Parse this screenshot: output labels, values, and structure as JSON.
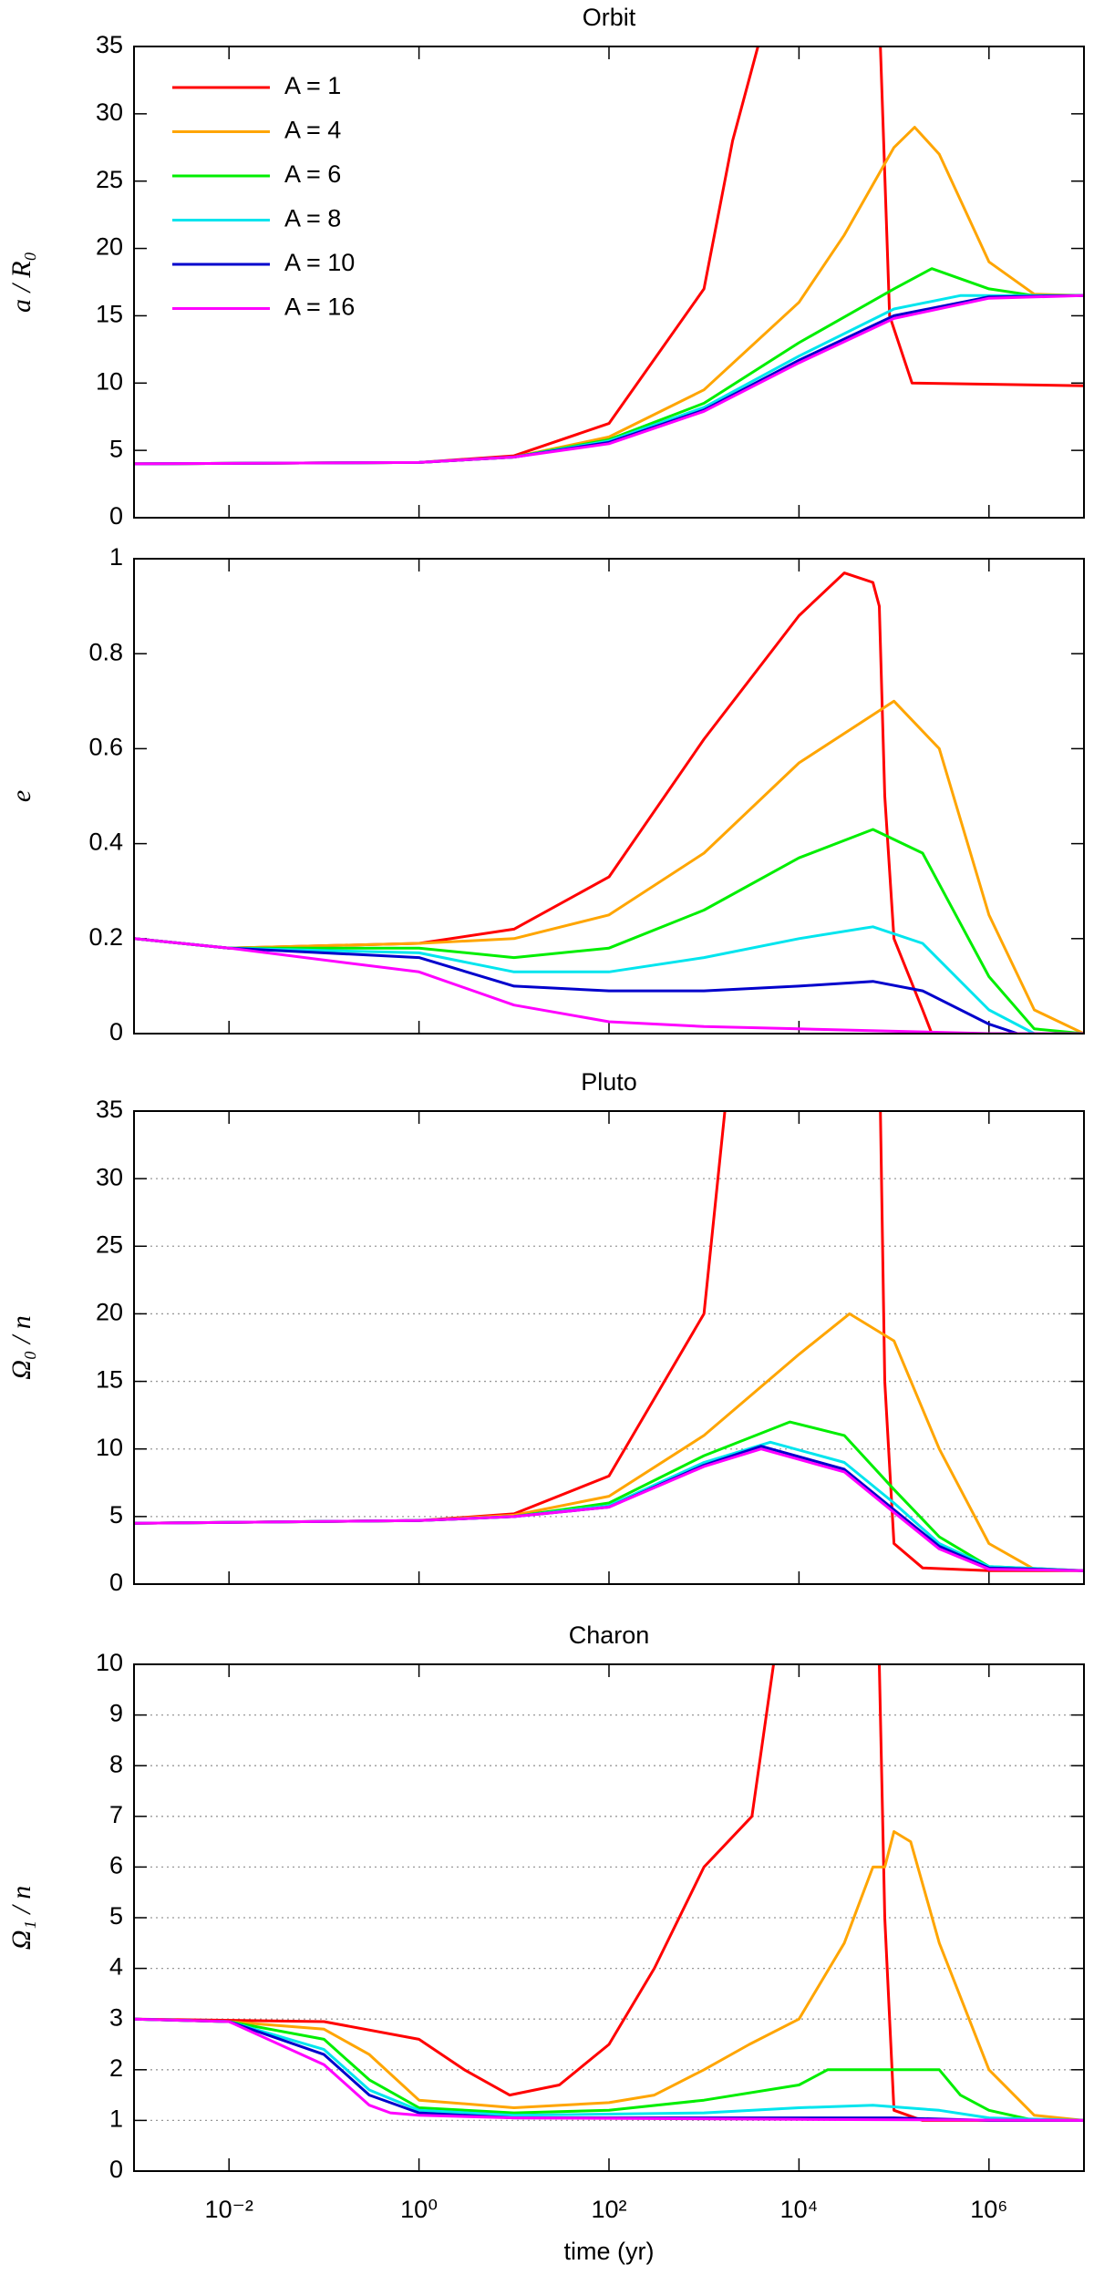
{
  "chart_data": [
    {
      "type": "line",
      "title": "Orbit",
      "ylabel": "a / R₀",
      "xscale": "log",
      "xlim": [
        0.001,
        10000000
      ],
      "ylim": [
        0,
        35
      ],
      "yticks": [
        0,
        5,
        10,
        15,
        20,
        25,
        30,
        35
      ],
      "xticks": [
        0.01,
        1,
        100,
        10000,
        1000000
      ],
      "grid": false,
      "legend": "upper left",
      "series": [
        {
          "name": "A = 1",
          "color": "#ff0000",
          "x": [
            0.001,
            1,
            10,
            100,
            1000,
            2000,
            3700,
            null,
            72000,
            90000,
            155000,
            10000000
          ],
          "values": [
            4,
            4.1,
            4.6,
            7,
            17,
            28,
            35,
            null,
            35,
            15,
            10,
            9.8
          ]
        },
        {
          "name": "A = 4",
          "color": "#ffa500",
          "x": [
            0.001,
            1,
            10,
            100,
            1000,
            10000,
            30000,
            100000,
            165000,
            300000,
            1000000,
            3000000,
            10000000
          ],
          "values": [
            4,
            4.1,
            4.5,
            6,
            9.5,
            16,
            21,
            27.5,
            29,
            27,
            19,
            16.6,
            16.5
          ]
        },
        {
          "name": "A = 6",
          "color": "#00ee00",
          "x": [
            0.001,
            1,
            10,
            100,
            1000,
            10000,
            100000,
            250000,
            1000000,
            3000000,
            10000000
          ],
          "values": [
            4,
            4.1,
            4.5,
            5.8,
            8.5,
            13,
            17,
            18.5,
            17,
            16.5,
            16.5
          ]
        },
        {
          "name": "A = 8",
          "color": "#00e5ee",
          "x": [
            0.001,
            1,
            10,
            100,
            1000,
            10000,
            100000,
            500000,
            10000000
          ],
          "values": [
            4,
            4.1,
            4.5,
            5.7,
            8.2,
            12,
            15.5,
            16.5,
            16.5
          ]
        },
        {
          "name": "A = 10",
          "color": "#0000cc",
          "x": [
            0.001,
            1,
            10,
            100,
            1000,
            10000,
            100000,
            1000000,
            10000000
          ],
          "values": [
            4,
            4.1,
            4.5,
            5.6,
            8,
            11.7,
            15,
            16.4,
            16.5
          ]
        },
        {
          "name": "A = 16",
          "color": "#ff00ff",
          "x": [
            0.001,
            1,
            10,
            100,
            1000,
            10000,
            100000,
            1000000,
            10000000
          ],
          "values": [
            4,
            4.1,
            4.5,
            5.5,
            7.9,
            11.5,
            14.8,
            16.3,
            16.5
          ]
        }
      ]
    },
    {
      "type": "line",
      "ylabel": "e",
      "xscale": "log",
      "xlim": [
        0.001,
        10000000
      ],
      "ylim": [
        0,
        1
      ],
      "yticks": [
        0,
        0.2,
        0.4,
        0.6,
        0.8,
        1
      ],
      "xticks": [
        0.01,
        1,
        100,
        10000,
        1000000
      ],
      "grid": false,
      "series": [
        {
          "color": "#ff0000",
          "x": [
            0.001,
            0.01,
            1,
            10,
            100,
            1000,
            10000,
            30000,
            60000,
            70000,
            80000,
            100000,
            200000,
            250000,
            10000000
          ],
          "values": [
            0.2,
            0.18,
            0.19,
            0.22,
            0.33,
            0.62,
            0.88,
            0.97,
            0.95,
            0.9,
            0.5,
            0.2,
            0.05,
            0,
            0
          ]
        },
        {
          "color": "#ffa500",
          "x": [
            0.001,
            0.01,
            1,
            10,
            100,
            1000,
            10000,
            100000,
            300000,
            1000000,
            3000000,
            10000000
          ],
          "values": [
            0.2,
            0.18,
            0.19,
            0.2,
            0.25,
            0.38,
            0.57,
            0.7,
            0.6,
            0.25,
            0.05,
            0
          ]
        },
        {
          "color": "#00ee00",
          "x": [
            0.001,
            0.01,
            1,
            10,
            100,
            1000,
            10000,
            60000,
            200000,
            1000000,
            3000000,
            10000000
          ],
          "values": [
            0.2,
            0.18,
            0.18,
            0.16,
            0.18,
            0.26,
            0.37,
            0.43,
            0.38,
            0.12,
            0.01,
            0
          ]
        },
        {
          "color": "#00e5ee",
          "x": [
            0.001,
            0.01,
            1,
            10,
            100,
            1000,
            10000,
            60000,
            200000,
            1000000,
            3000000,
            10000000
          ],
          "values": [
            0.2,
            0.18,
            0.17,
            0.13,
            0.13,
            0.16,
            0.2,
            0.225,
            0.19,
            0.05,
            0,
            0
          ]
        },
        {
          "color": "#0000cc",
          "x": [
            0.001,
            0.01,
            1,
            10,
            100,
            1000,
            10000,
            60000,
            200000,
            1000000,
            2000000,
            10000000
          ],
          "values": [
            0.2,
            0.18,
            0.16,
            0.1,
            0.09,
            0.09,
            0.1,
            0.11,
            0.09,
            0.02,
            0,
            0
          ]
        },
        {
          "color": "#ff00ff",
          "x": [
            0.001,
            0.01,
            1,
            10,
            100,
            1000,
            10000,
            100000,
            1000000,
            10000000
          ],
          "values": [
            0.2,
            0.18,
            0.13,
            0.06,
            0.025,
            0.015,
            0.01,
            0.005,
            0,
            0
          ]
        }
      ]
    },
    {
      "type": "line",
      "title": "Pluto",
      "ylabel": "Ω₀ / n",
      "xscale": "log",
      "xlim": [
        0.001,
        10000000
      ],
      "ylim": [
        0,
        35
      ],
      "yticks": [
        0,
        5,
        10,
        15,
        20,
        25,
        30,
        35
      ],
      "xticks": [
        0.01,
        1,
        100,
        10000,
        1000000
      ],
      "grid": true,
      "series": [
        {
          "color": "#ff0000",
          "x": [
            0.001,
            1,
            10,
            100,
            1000,
            1660,
            null,
            72000,
            80000,
            100000,
            200000,
            1000000,
            10000000
          ],
          "values": [
            4.5,
            4.7,
            5.2,
            8,
            20,
            35,
            null,
            35,
            15,
            3,
            1.2,
            1,
            1
          ]
        },
        {
          "color": "#ffa500",
          "x": [
            0.001,
            1,
            10,
            100,
            1000,
            10000,
            34000,
            100000,
            300000,
            1000000,
            3000000,
            10000000
          ],
          "values": [
            4.5,
            4.7,
            5.1,
            6.5,
            11,
            17,
            20,
            18,
            10,
            3,
            1.1,
            1
          ]
        },
        {
          "color": "#00ee00",
          "x": [
            0.001,
            1,
            10,
            100,
            1000,
            8000,
            30000,
            100000,
            300000,
            1000000,
            10000000
          ],
          "values": [
            4.5,
            4.7,
            5,
            6,
            9.5,
            12,
            11,
            7,
            3.5,
            1.3,
            1
          ]
        },
        {
          "color": "#00e5ee",
          "x": [
            0.001,
            1,
            10,
            100,
            1000,
            5000,
            30000,
            100000,
            300000,
            1000000,
            10000000
          ],
          "values": [
            4.5,
            4.7,
            5,
            5.8,
            9,
            10.5,
            9,
            6,
            3,
            1.3,
            1
          ]
        },
        {
          "color": "#0000cc",
          "x": [
            0.001,
            1,
            10,
            100,
            1000,
            4000,
            30000,
            100000,
            300000,
            1000000,
            10000000
          ],
          "values": [
            4.5,
            4.7,
            5,
            5.7,
            8.8,
            10.2,
            8.5,
            5.5,
            2.8,
            1.2,
            1
          ]
        },
        {
          "color": "#ff00ff",
          "x": [
            0.001,
            1,
            10,
            100,
            1000,
            4000,
            30000,
            100000,
            300000,
            1000000,
            10000000
          ],
          "values": [
            4.5,
            4.7,
            5,
            5.7,
            8.7,
            10,
            8.3,
            5.3,
            2.6,
            1.1,
            1
          ]
        }
      ]
    },
    {
      "type": "line",
      "title": "Charon",
      "ylabel": "Ω₁ / n",
      "xlabel": "time (yr)",
      "xscale": "log",
      "xlim": [
        0.001,
        10000000
      ],
      "ylim": [
        0,
        10
      ],
      "yticks": [
        0,
        1,
        2,
        3,
        4,
        5,
        6,
        7,
        8,
        9,
        10
      ],
      "xticks": [
        {
          "value": 0.01,
          "label": "10⁻²"
        },
        {
          "value": 1,
          "label": "10⁰"
        },
        {
          "value": 100,
          "label": "10²"
        },
        {
          "value": 10000,
          "label": "10⁴"
        },
        {
          "value": 1000000,
          "label": "10⁶"
        }
      ],
      "grid": true,
      "series": [
        {
          "color": "#ff0000",
          "x": [
            0.001,
            0.1,
            1,
            3,
            9,
            30,
            100,
            300,
            1000,
            3200,
            5400,
            null,
            70000,
            80000,
            100000,
            200000,
            10000000
          ],
          "values": [
            3,
            2.95,
            2.6,
            2,
            1.5,
            1.7,
            2.5,
            4,
            6,
            7,
            10,
            null,
            10,
            5,
            1.2,
            1,
            1
          ]
        },
        {
          "color": "#ffa500",
          "x": [
            0.001,
            0.01,
            0.1,
            0.3,
            1,
            10,
            100,
            300,
            1000,
            3000,
            10000,
            30000,
            60000,
            80000,
            100000,
            150000,
            300000,
            1000000,
            3000000,
            10000000
          ],
          "values": [
            3,
            2.95,
            2.8,
            2.3,
            1.4,
            1.25,
            1.35,
            1.5,
            2,
            2.5,
            3,
            4.5,
            6,
            6,
            6.7,
            6.5,
            4.5,
            2,
            1.1,
            1
          ]
        },
        {
          "color": "#00ee00",
          "x": [
            0.001,
            0.01,
            0.1,
            0.3,
            1,
            10,
            100,
            1000,
            10000,
            20000,
            300000,
            500000,
            1000000,
            3000000,
            10000000
          ],
          "values": [
            3,
            2.95,
            2.6,
            1.8,
            1.25,
            1.15,
            1.2,
            1.4,
            1.7,
            2,
            2,
            1.5,
            1.2,
            1,
            1
          ]
        },
        {
          "color": "#00e5ee",
          "x": [
            0.001,
            0.01,
            0.1,
            0.3,
            1,
            10,
            1000,
            10000,
            60000,
            300000,
            1000000,
            10000000
          ],
          "values": [
            3,
            2.95,
            2.4,
            1.6,
            1.2,
            1.1,
            1.15,
            1.25,
            1.3,
            1.2,
            1.05,
            1
          ]
        },
        {
          "color": "#0000cc",
          "x": [
            0.001,
            0.01,
            0.1,
            0.3,
            1,
            10,
            1000,
            100000,
            1000000,
            10000000
          ],
          "values": [
            3,
            2.95,
            2.3,
            1.5,
            1.15,
            1.05,
            1.05,
            1.05,
            1,
            1
          ]
        },
        {
          "color": "#ff00ff",
          "x": [
            0.001,
            0.01,
            0.1,
            0.3,
            0.5,
            1,
            10,
            10000,
            10000000
          ],
          "values": [
            3,
            2.95,
            2.1,
            1.3,
            1.15,
            1.1,
            1.05,
            1.02,
            1
          ]
        }
      ]
    }
  ]
}
